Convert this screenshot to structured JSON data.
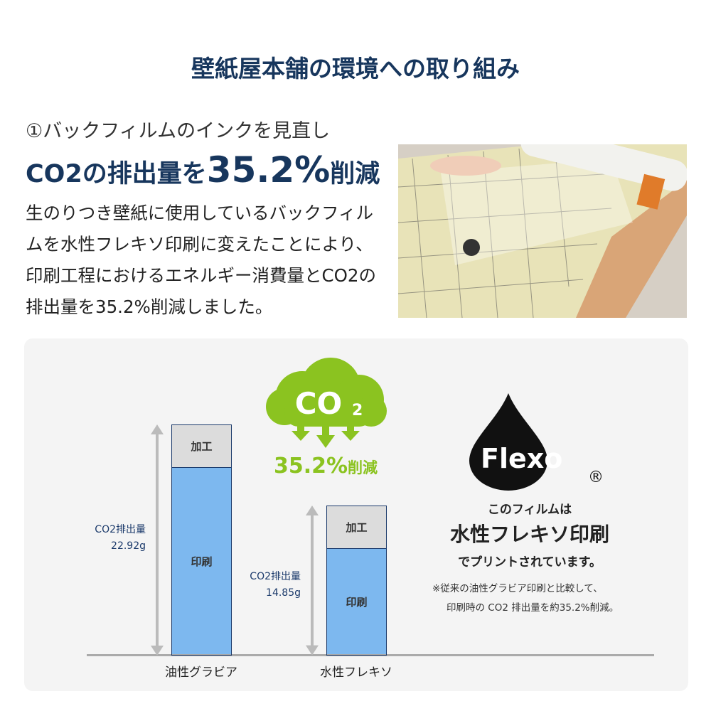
{
  "title": "壁紙屋本舗の環境への取り組み",
  "section": {
    "subtitle": "①バックフィルムのインクを見直し",
    "headline_pre": "CO2の排出量を",
    "headline_value": "35.2%",
    "headline_post": "削減",
    "body": "生のりつき壁紙に使用しているバックフィルムを水性フレキソ印刷に変えたことにより、印刷工程におけるエネルギー消費量とCO2の排出量を35.2%削減しました。"
  },
  "photo": {
    "description_icon": "wallpaper-roll-photo"
  },
  "co2_badge": {
    "label": "CO",
    "subscript": "2",
    "reduction": "35.2%",
    "reduction_suffix": "削減",
    "color": "#8bc320"
  },
  "chart_data": {
    "type": "bar",
    "stacked": true,
    "categories": [
      "油性グラビア",
      "水性フレキソ"
    ],
    "totals": [
      22.92,
      14.85
    ],
    "total_labels": [
      "CO2排出量\n22.92g",
      "CO2排出量\n14.85g"
    ],
    "label_prefix": "CO2排出量",
    "value_texts": [
      "22.92g",
      "14.85g"
    ],
    "segments": [
      "印刷",
      "加工"
    ],
    "colors": {
      "印刷": "#7db8ef",
      "加工": "#dcdcdc"
    }
  },
  "flexo": {
    "logo_text": "Flexo",
    "registered": "®",
    "line1": "このフィルムは",
    "line2": "水性フレキソ印刷",
    "line3": "でプリントされています。",
    "note1": "※従来の油性グラビア印刷と比較して、",
    "note2": "印刷時の CO2 排出量を約35.2%削減。"
  }
}
